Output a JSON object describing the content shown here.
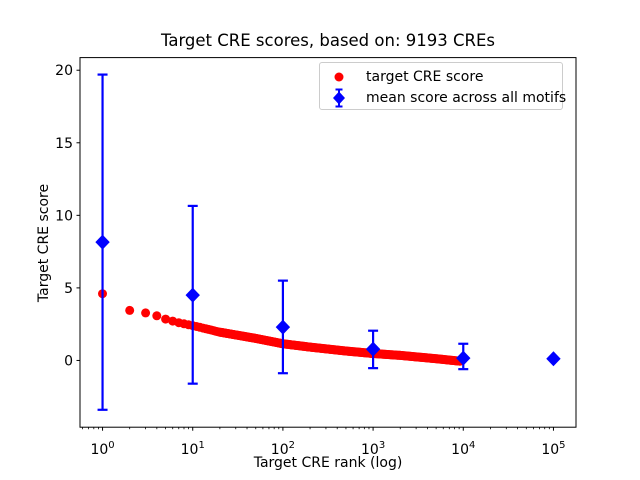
{
  "chart_data": {
    "type": "scatter",
    "title": "Target CRE scores, based on: 9193 CREs",
    "xlabel": "Target CRE rank (log)",
    "ylabel": "Target CRE score",
    "x_scale": "log",
    "xlim_log10": [
      -0.25,
      5.25
    ],
    "ylim": [
      -4.6,
      20.87
    ],
    "yticks": [
      0,
      5,
      10,
      15,
      20
    ],
    "xtick_exponents": [
      0,
      1,
      2,
      3,
      4,
      5
    ],
    "xtick_base": "10",
    "grid": false,
    "legend_position": "upper right",
    "colors": {
      "target": "#ff0000",
      "mean": "#0000ff",
      "axis": "#000000",
      "legend_border": "#cccccc",
      "background": "#ffffff"
    },
    "series": [
      {
        "name": "target CRE score",
        "type": "scatter",
        "marker": "circle",
        "color_key": "target",
        "n_points": 9193,
        "rank_range": [
          1,
          9193
        ],
        "profile_points": [
          [
            1,
            4.6
          ],
          [
            2,
            3.45
          ],
          [
            3,
            3.28
          ],
          [
            4,
            3.08
          ],
          [
            5,
            2.85
          ],
          [
            7,
            2.6
          ],
          [
            10,
            2.4
          ],
          [
            20,
            1.95
          ],
          [
            50,
            1.52
          ],
          [
            100,
            1.15
          ],
          [
            200,
            0.92
          ],
          [
            500,
            0.65
          ],
          [
            1000,
            0.48
          ],
          [
            2000,
            0.35
          ],
          [
            5000,
            0.12
          ],
          [
            9193,
            -0.05
          ]
        ]
      },
      {
        "name": "mean score across all motifs",
        "type": "errorbar",
        "marker": "diamond",
        "color_key": "mean",
        "points": [
          {
            "x": 1,
            "mean": 8.15,
            "err_low": -3.4,
            "err_high": 19.7
          },
          {
            "x": 10,
            "mean": 4.5,
            "err_low": -1.6,
            "err_high": 10.65
          },
          {
            "x": 100,
            "mean": 2.3,
            "err_low": -0.88,
            "err_high": 5.5
          },
          {
            "x": 1000,
            "mean": 0.78,
            "err_low": -0.53,
            "err_high": 2.05
          },
          {
            "x": 10000,
            "mean": 0.16,
            "err_low": -0.6,
            "err_high": 1.15
          },
          {
            "x": 100000,
            "mean": 0.12,
            "err_low": null,
            "err_high": null
          }
        ]
      }
    ]
  }
}
